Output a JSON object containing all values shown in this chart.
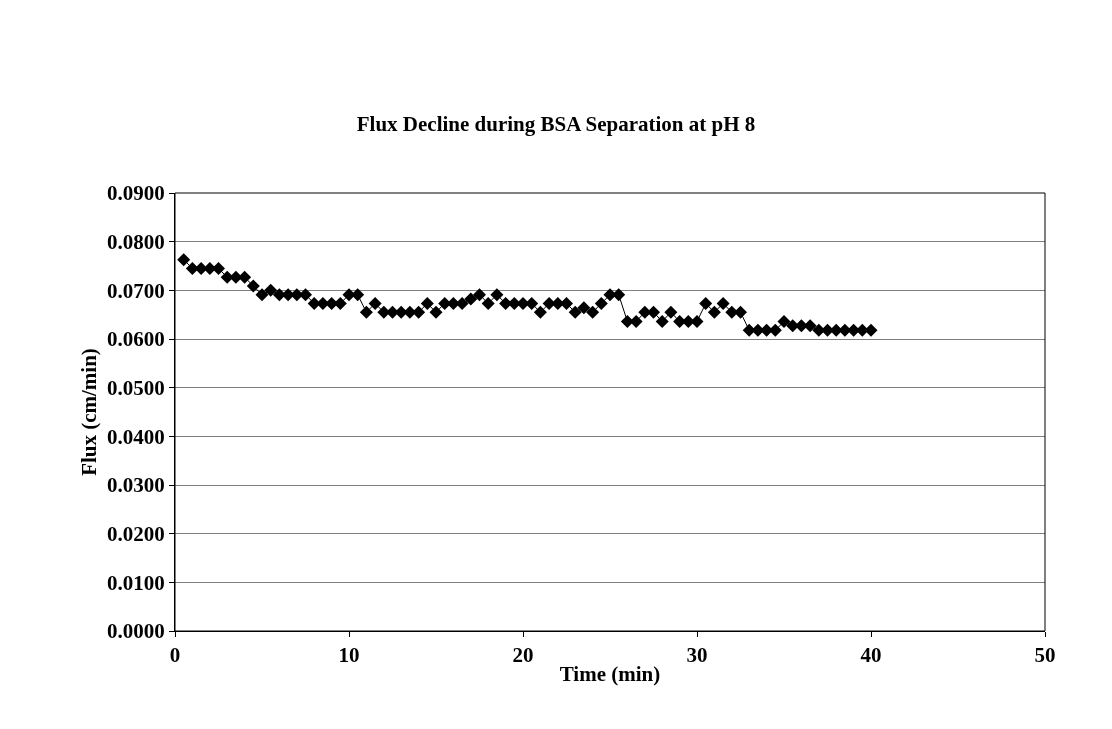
{
  "chart_data": {
    "type": "line",
    "title": "Flux Decline during BSA Separation at pH 8",
    "xlabel": "Time (min)",
    "ylabel": "Flux (cm/min)",
    "x": [
      0.5,
      1,
      1.5,
      2,
      2.5,
      3,
      3.5,
      4,
      4.5,
      5,
      5.5,
      6,
      6.5,
      7,
      7.5,
      8,
      8.5,
      9,
      9.5,
      10,
      10.5,
      11,
      11.5,
      12,
      12.5,
      13,
      13.5,
      14,
      14.5,
      15,
      15.5,
      16,
      16.5,
      17,
      17.5,
      18,
      18.5,
      19,
      19.5,
      20,
      20.5,
      21,
      21.5,
      22,
      22.5,
      23,
      23.5,
      24,
      24.5,
      25,
      25.5,
      26,
      26.5,
      27,
      27.5,
      28,
      28.5,
      29,
      29.5,
      30,
      30.5,
      31,
      31.5,
      32,
      32.5,
      33,
      33.5,
      34,
      34.5,
      35,
      35.5,
      36,
      36.5,
      37,
      37.5,
      38,
      38.5,
      39,
      39.5,
      40
    ],
    "series": [
      {
        "color": "#000000",
        "values": [
          0.0763,
          0.0745,
          0.0745,
          0.0745,
          0.0745,
          0.0727,
          0.0727,
          0.0727,
          0.0709,
          0.0691,
          0.07,
          0.0691,
          0.0691,
          0.0691,
          0.0691,
          0.0673,
          0.0673,
          0.0673,
          0.0673,
          0.0691,
          0.0691,
          0.0655,
          0.0673,
          0.0655,
          0.0655,
          0.0655,
          0.0655,
          0.0655,
          0.0673,
          0.0655,
          0.0673,
          0.0673,
          0.0673,
          0.0682,
          0.0691,
          0.0673,
          0.0691,
          0.0673,
          0.0673,
          0.0673,
          0.0673,
          0.0655,
          0.0673,
          0.0673,
          0.0673,
          0.0655,
          0.0664,
          0.0655,
          0.0673,
          0.0691,
          0.0691,
          0.0636,
          0.0636,
          0.0655,
          0.0655,
          0.0636,
          0.0655,
          0.0636,
          0.0636,
          0.0636,
          0.0673,
          0.0655,
          0.0673,
          0.0655,
          0.0655,
          0.0618,
          0.0618,
          0.0618,
          0.0618,
          0.0636,
          0.0627,
          0.0627,
          0.0627,
          0.0618,
          0.0618,
          0.0618,
          0.0618,
          0.0618,
          0.0618,
          0.0618
        ]
      }
    ],
    "xlim": [
      0,
      50
    ],
    "xticks": [
      0,
      10,
      20,
      30,
      40,
      50
    ],
    "ylim": [
      0,
      0.09
    ],
    "yticks": [
      {
        "value": 0,
        "label": "0.0000"
      },
      {
        "value": 0.01,
        "label": "0.0100"
      },
      {
        "value": 0.02,
        "label": "0.0200"
      },
      {
        "value": 0.03,
        "label": "0.0300"
      },
      {
        "value": 0.04,
        "label": "0.0400"
      },
      {
        "value": 0.05,
        "label": "0.0500"
      },
      {
        "value": 0.06,
        "label": "0.0600"
      },
      {
        "value": 0.07,
        "label": "0.0700"
      },
      {
        "value": 0.08,
        "label": "0.0800"
      },
      {
        "value": 0.09,
        "label": "0.0900"
      }
    ],
    "grid": "y",
    "marker": "diamond",
    "line_style": "solid",
    "legend": false
  }
}
